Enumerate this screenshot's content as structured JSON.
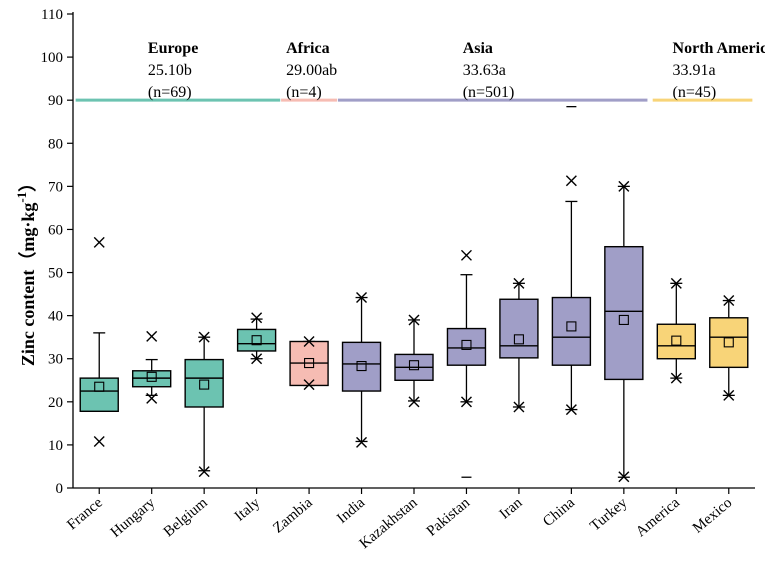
{
  "chart_data": {
    "type": "boxplot",
    "title": "",
    "xlabel": "",
    "ylabel": "Zinc content（mg·kg⁻¹）",
    "ylabel_main": "Zinc content（mg·kg",
    "ylabel_exp": "-1",
    "ylabel_close": "）",
    "ylim": [
      0,
      110
    ],
    "yticks": [
      0,
      10,
      20,
      30,
      40,
      50,
      60,
      70,
      80,
      90,
      100,
      110
    ],
    "grid": false,
    "regions": [
      {
        "name": "Europe",
        "mean_label": "25.10b",
        "n_label": "(n=69)",
        "color": "#6cc3b1",
        "from": 0,
        "to": 3
      },
      {
        "name": "Africa",
        "mean_label": "29.00ab",
        "n_label": "(n=4)",
        "color": "#f6bcb3",
        "from": 4,
        "to": 4
      },
      {
        "name": "Asia",
        "mean_label": "33.63a",
        "n_label": "(n=501)",
        "color": "#a09ec7",
        "from": 5,
        "to": 10
      },
      {
        "name": "North America",
        "mean_label": "33.91a",
        "n_label": "(n=45)",
        "color": "#f8d478",
        "from": 11,
        "to": 12
      }
    ],
    "region_line_value": 90,
    "categories": [
      "France",
      "Hungary",
      "Belgium",
      "Italy",
      "Zambia",
      "India",
      "Kazakhstan",
      "Pakistan",
      "Iran",
      "China",
      "Turkey",
      "America",
      "Mexico"
    ],
    "series": [
      {
        "name": "France",
        "region": 0,
        "q1": 17.8,
        "median": 22.5,
        "q3": 25.5,
        "whisker_low": 17.8,
        "whisker_high": 36.0,
        "mean": 23.5,
        "min": 10.8,
        "max": 57.0,
        "outliers": []
      },
      {
        "name": "Hungary",
        "region": 0,
        "q1": 23.5,
        "median": 25.5,
        "q3": 27.2,
        "whisker_low": 21.5,
        "whisker_high": 29.8,
        "mean": 25.8,
        "min": 20.8,
        "max": 35.2,
        "outliers": []
      },
      {
        "name": "Belgium",
        "region": 0,
        "q1": 18.8,
        "median": 25.5,
        "q3": 29.8,
        "whisker_low": 4.0,
        "whisker_high": 35.0,
        "mean": 24.0,
        "min": 3.8,
        "max": 35.0,
        "outliers": []
      },
      {
        "name": "Italy",
        "region": 0,
        "q1": 31.8,
        "median": 33.5,
        "q3": 36.8,
        "whisker_low": 30.0,
        "whisker_high": 39.2,
        "mean": 34.3,
        "min": 30.0,
        "max": 39.5,
        "outliers": []
      },
      {
        "name": "Zambia",
        "region": 1,
        "q1": 23.8,
        "median": 29.0,
        "q3": 34.0,
        "whisker_low": 23.8,
        "whisker_high": 34.0,
        "mean": 29.0,
        "min": 24.0,
        "max": 34.0,
        "outliers": []
      },
      {
        "name": "India",
        "region": 2,
        "q1": 22.5,
        "median": 28.8,
        "q3": 33.8,
        "whisker_low": 10.8,
        "whisker_high": 44.2,
        "mean": 28.3,
        "min": 10.6,
        "max": 44.2,
        "outliers": []
      },
      {
        "name": "Kazakhstan",
        "region": 2,
        "q1": 25.0,
        "median": 28.0,
        "q3": 31.0,
        "whisker_low": 20.2,
        "whisker_high": 39.0,
        "mean": 28.5,
        "min": 20.0,
        "max": 39.0,
        "outliers": []
      },
      {
        "name": "Pakistan",
        "region": 2,
        "q1": 28.5,
        "median": 32.5,
        "q3": 37.0,
        "whisker_low": 20.0,
        "whisker_high": 49.5,
        "mean": 33.2,
        "min": 20.0,
        "max": 54.0,
        "outliers": [
          2.5
        ]
      },
      {
        "name": "Iran",
        "region": 2,
        "q1": 30.2,
        "median": 33.0,
        "q3": 43.8,
        "whisker_low": 18.8,
        "whisker_high": 47.5,
        "mean": 34.5,
        "min": 18.8,
        "max": 47.5,
        "outliers": []
      },
      {
        "name": "China",
        "region": 2,
        "q1": 28.5,
        "median": 35.0,
        "q3": 44.2,
        "whisker_low": 18.2,
        "whisker_high": 66.5,
        "mean": 37.5,
        "min": 18.2,
        "max": 71.3,
        "outliers": [
          88.5
        ]
      },
      {
        "name": "Turkey",
        "region": 2,
        "q1": 25.2,
        "median": 41.0,
        "q3": 56.0,
        "whisker_low": 2.5,
        "whisker_high": 70.0,
        "mean": 39.0,
        "min": 2.6,
        "max": 70.0,
        "outliers": []
      },
      {
        "name": "America",
        "region": 3,
        "q1": 30.0,
        "median": 33.0,
        "q3": 38.0,
        "whisker_low": 25.5,
        "whisker_high": 47.5,
        "mean": 34.2,
        "min": 25.5,
        "max": 47.5,
        "outliers": []
      },
      {
        "name": "Mexico",
        "region": 3,
        "q1": 28.0,
        "median": 35.0,
        "q3": 39.5,
        "whisker_low": 21.5,
        "whisker_high": 43.5,
        "mean": 33.8,
        "min": 21.5,
        "max": 43.5,
        "outliers": []
      }
    ]
  }
}
